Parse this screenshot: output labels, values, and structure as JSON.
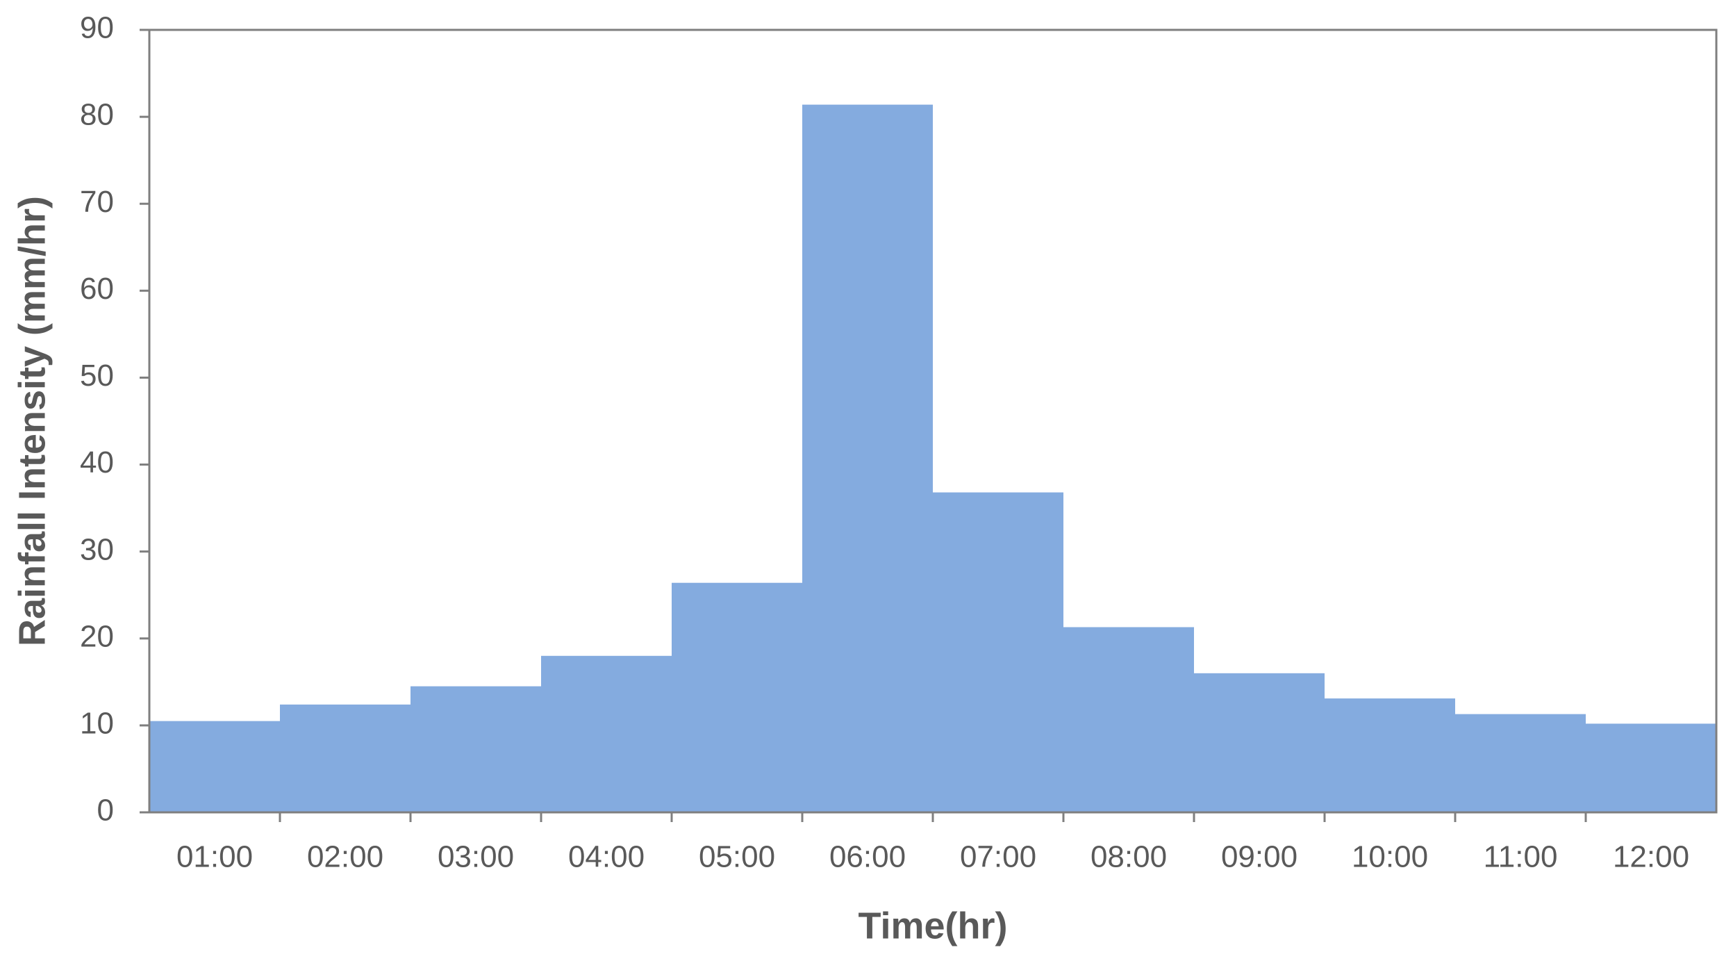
{
  "chart_data": {
    "type": "bar",
    "x_label": "Time(hr)",
    "y_label": "Rainfall Intensity (mm/hr)",
    "categories": [
      "01:00",
      "02:00",
      "03:00",
      "04:00",
      "05:00",
      "06:00",
      "07:00",
      "08:00",
      "09:00",
      "10:00",
      "11:00",
      "12:00"
    ],
    "values": [
      10.5,
      12.4,
      14.5,
      18.0,
      26.4,
      81.4,
      36.8,
      21.3,
      16.0,
      13.1,
      11.3,
      10.2
    ],
    "color": "#84abdf",
    "ylim": [
      0,
      90
    ],
    "yticks": [
      0,
      10,
      20,
      30,
      40,
      50,
      60,
      70,
      80,
      90
    ],
    "grid": false
  }
}
